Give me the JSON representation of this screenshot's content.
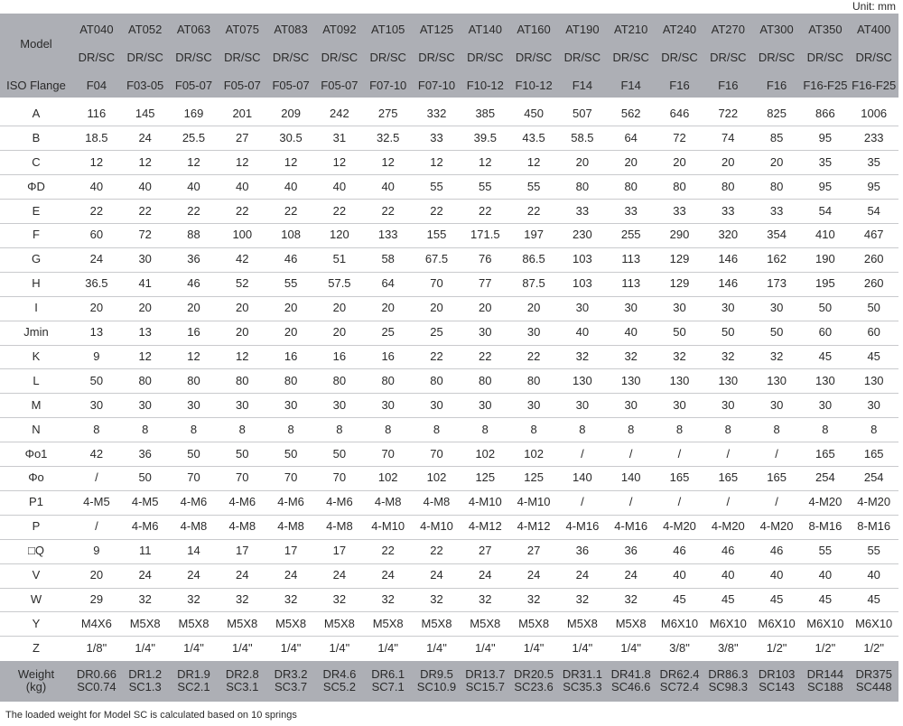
{
  "unit": "Unit: mm",
  "header": {
    "model_label": "Model",
    "flange_label": "ISO Flange",
    "models": [
      "AT040",
      "AT052",
      "AT063",
      "AT075",
      "AT083",
      "AT092",
      "AT105",
      "AT125",
      "AT140",
      "AT160",
      "AT190",
      "AT210",
      "AT240",
      "AT270",
      "AT300",
      "AT350",
      "AT400"
    ],
    "types": [
      "DR/SC",
      "DR/SC",
      "DR/SC",
      "DR/SC",
      "DR/SC",
      "DR/SC",
      "DR/SC",
      "DR/SC",
      "DR/SC",
      "DR/SC",
      "DR/SC",
      "DR/SC",
      "DR/SC",
      "DR/SC",
      "DR/SC",
      "DR/SC",
      "DR/SC"
    ],
    "flanges": [
      "F04",
      "F03-05",
      "F05-07",
      "F05-07",
      "F05-07",
      "F05-07",
      "F07-10",
      "F07-10",
      "F10-12",
      "F10-12",
      "F14",
      "F14",
      "F16",
      "F16",
      "F16",
      "F16-F25",
      "F16-F25"
    ]
  },
  "rows": [
    {
      "label": "A",
      "values": [
        "116",
        "145",
        "169",
        "201",
        "209",
        "242",
        "275",
        "332",
        "385",
        "450",
        "507",
        "562",
        "646",
        "722",
        "825",
        "866",
        "1006"
      ]
    },
    {
      "label": "B",
      "values": [
        "18.5",
        "24",
        "25.5",
        "27",
        "30.5",
        "31",
        "32.5",
        "33",
        "39.5",
        "43.5",
        "58.5",
        "64",
        "72",
        "74",
        "85",
        "95",
        "233"
      ]
    },
    {
      "label": "C",
      "values": [
        "12",
        "12",
        "12",
        "12",
        "12",
        "12",
        "12",
        "12",
        "12",
        "12",
        "20",
        "20",
        "20",
        "20",
        "20",
        "35",
        "35"
      ]
    },
    {
      "label": "ΦD",
      "values": [
        "40",
        "40",
        "40",
        "40",
        "40",
        "40",
        "40",
        "55",
        "55",
        "55",
        "80",
        "80",
        "80",
        "80",
        "80",
        "95",
        "95"
      ]
    },
    {
      "label": "E",
      "values": [
        "22",
        "22",
        "22",
        "22",
        "22",
        "22",
        "22",
        "22",
        "22",
        "22",
        "33",
        "33",
        "33",
        "33",
        "33",
        "54",
        "54"
      ]
    },
    {
      "label": "F",
      "values": [
        "60",
        "72",
        "88",
        "100",
        "108",
        "120",
        "133",
        "155",
        "171.5",
        "197",
        "230",
        "255",
        "290",
        "320",
        "354",
        "410",
        "467"
      ]
    },
    {
      "label": "G",
      "values": [
        "24",
        "30",
        "36",
        "42",
        "46",
        "51",
        "58",
        "67.5",
        "76",
        "86.5",
        "103",
        "113",
        "129",
        "146",
        "162",
        "190",
        "260"
      ]
    },
    {
      "label": "H",
      "values": [
        "36.5",
        "41",
        "46",
        "52",
        "55",
        "57.5",
        "64",
        "70",
        "77",
        "87.5",
        "103",
        "113",
        "129",
        "146",
        "173",
        "195",
        "260"
      ]
    },
    {
      "label": "I",
      "values": [
        "20",
        "20",
        "20",
        "20",
        "20",
        "20",
        "20",
        "20",
        "20",
        "20",
        "30",
        "30",
        "30",
        "30",
        "30",
        "50",
        "50"
      ]
    },
    {
      "label": "Jmin",
      "values": [
        "13",
        "13",
        "16",
        "20",
        "20",
        "20",
        "25",
        "25",
        "30",
        "30",
        "40",
        "40",
        "50",
        "50",
        "50",
        "60",
        "60"
      ]
    },
    {
      "label": "K",
      "values": [
        "9",
        "12",
        "12",
        "12",
        "16",
        "16",
        "16",
        "22",
        "22",
        "22",
        "32",
        "32",
        "32",
        "32",
        "32",
        "45",
        "45"
      ]
    },
    {
      "label": "L",
      "values": [
        "50",
        "80",
        "80",
        "80",
        "80",
        "80",
        "80",
        "80",
        "80",
        "80",
        "130",
        "130",
        "130",
        "130",
        "130",
        "130",
        "130"
      ]
    },
    {
      "label": "M",
      "values": [
        "30",
        "30",
        "30",
        "30",
        "30",
        "30",
        "30",
        "30",
        "30",
        "30",
        "30",
        "30",
        "30",
        "30",
        "30",
        "30",
        "30"
      ]
    },
    {
      "label": "N",
      "values": [
        "8",
        "8",
        "8",
        "8",
        "8",
        "8",
        "8",
        "8",
        "8",
        "8",
        "8",
        "8",
        "8",
        "8",
        "8",
        "8",
        "8"
      ]
    },
    {
      "label": "Φo1",
      "values": [
        "42",
        "36",
        "50",
        "50",
        "50",
        "50",
        "70",
        "70",
        "102",
        "102",
        "/",
        "/",
        "/",
        "/",
        "/",
        "165",
        "165"
      ]
    },
    {
      "label": "Φo",
      "values": [
        "/",
        "50",
        "70",
        "70",
        "70",
        "70",
        "102",
        "102",
        "125",
        "125",
        "140",
        "140",
        "165",
        "165",
        "165",
        "254",
        "254"
      ]
    },
    {
      "label": "P1",
      "values": [
        "4-M5",
        "4-M5",
        "4-M6",
        "4-M6",
        "4-M6",
        "4-M6",
        "4-M8",
        "4-M8",
        "4-M10",
        "4-M10",
        "/",
        "/",
        "/",
        "/",
        "/",
        "4-M20",
        "4-M20"
      ]
    },
    {
      "label": "P",
      "values": [
        "/",
        "4-M6",
        "4-M8",
        "4-M8",
        "4-M8",
        "4-M8",
        "4-M10",
        "4-M10",
        "4-M12",
        "4-M12",
        "4-M16",
        "4-M16",
        "4-M20",
        "4-M20",
        "4-M20",
        "8-M16",
        "8-M16"
      ]
    },
    {
      "label": "□Q",
      "values": [
        "9",
        "11",
        "14",
        "17",
        "17",
        "17",
        "22",
        "22",
        "27",
        "27",
        "36",
        "36",
        "46",
        "46",
        "46",
        "55",
        "55"
      ]
    },
    {
      "label": "V",
      "values": [
        "20",
        "24",
        "24",
        "24",
        "24",
        "24",
        "24",
        "24",
        "24",
        "24",
        "24",
        "24",
        "40",
        "40",
        "40",
        "40",
        "40"
      ]
    },
    {
      "label": "W",
      "values": [
        "29",
        "32",
        "32",
        "32",
        "32",
        "32",
        "32",
        "32",
        "32",
        "32",
        "32",
        "32",
        "45",
        "45",
        "45",
        "45",
        "45"
      ]
    },
    {
      "label": "Y",
      "values": [
        "M4X6",
        "M5X8",
        "M5X8",
        "M5X8",
        "M5X8",
        "M5X8",
        "M5X8",
        "M5X8",
        "M5X8",
        "M5X8",
        "M5X8",
        "M5X8",
        "M6X10",
        "M6X10",
        "M6X10",
        "M6X10",
        "M6X10"
      ]
    },
    {
      "label": "Z",
      "values": [
        "1/8\"",
        "1/4\"",
        "1/4\"",
        "1/4\"",
        "1/4\"",
        "1/4\"",
        "1/4\"",
        "1/4\"",
        "1/4\"",
        "1/4\"",
        "1/4\"",
        "1/4\"",
        "3/8\"",
        "3/8\"",
        "1/2\"",
        "1/2\"",
        "1/2\""
      ]
    }
  ],
  "weight": {
    "label": [
      "Weight",
      "(kg)"
    ],
    "values": [
      [
        "DR0.66",
        "SC0.74"
      ],
      [
        "DR1.2",
        "SC1.3"
      ],
      [
        "DR1.9",
        "SC2.1"
      ],
      [
        "DR2.8",
        "SC3.1"
      ],
      [
        "DR3.2",
        "SC3.7"
      ],
      [
        "DR4.6",
        "SC5.2"
      ],
      [
        "DR6.1",
        "SC7.1"
      ],
      [
        "DR9.5",
        "SC10.9"
      ],
      [
        "DR13.7",
        "SC15.7"
      ],
      [
        "DR20.5",
        "SC23.6"
      ],
      [
        "DR31.1",
        "SC35.3"
      ],
      [
        "DR41.8",
        "SC46.6"
      ],
      [
        "DR62.4",
        "SC72.4"
      ],
      [
        "DR86.3",
        "SC98.3"
      ],
      [
        "DR103",
        "SC143"
      ],
      [
        "DR144",
        "SC188"
      ],
      [
        "DR375",
        "SC448"
      ]
    ]
  },
  "note": "The loaded weight for Model SC is calculated based on 10 springs"
}
